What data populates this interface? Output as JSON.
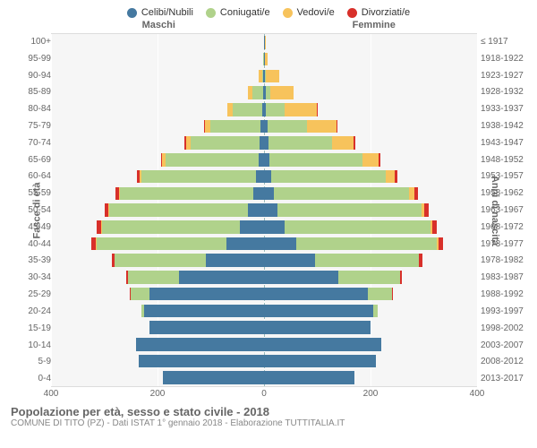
{
  "legend": [
    {
      "label": "Celibi/Nubili",
      "color": "#4579a0"
    },
    {
      "label": "Coniugati/e",
      "color": "#b0d28b"
    },
    {
      "label": "Vedovi/e",
      "color": "#f7c35c"
    },
    {
      "label": "Divorziati/e",
      "color": "#d8302a"
    }
  ],
  "genders": {
    "left": "Maschi",
    "right": "Femmine"
  },
  "ylabels": {
    "left": "Fasce di età",
    "right": "Anni di nascita"
  },
  "age_groups": [
    "100+",
    "95-99",
    "90-94",
    "85-89",
    "80-84",
    "75-79",
    "70-74",
    "65-69",
    "60-64",
    "55-59",
    "50-54",
    "45-49",
    "40-44",
    "35-39",
    "30-34",
    "25-29",
    "20-24",
    "15-19",
    "10-14",
    "5-9",
    "0-4"
  ],
  "birth_years": [
    "≤ 1917",
    "1918-1922",
    "1923-1927",
    "1928-1932",
    "1933-1937",
    "1938-1942",
    "1943-1947",
    "1948-1952",
    "1953-1957",
    "1958-1962",
    "1963-1967",
    "1968-1972",
    "1973-1977",
    "1978-1982",
    "1983-1987",
    "1988-1992",
    "1993-1997",
    "1998-2002",
    "2003-2007",
    "2008-2012",
    "2013-2017"
  ],
  "x_max": 400,
  "x_ticks": [
    400,
    200,
    0,
    200,
    400
  ],
  "title": "Popolazione per età, sesso e stato civile - 2018",
  "subtitle": "COMUNE DI TITO (PZ) - Dati ISTAT 1° gennaio 2018 - Elaborazione TUTTITALIA.IT",
  "colors": {
    "celibi": "#4579a0",
    "coniugati": "#b0d28b",
    "vedovi": "#f7c35c",
    "divorziati": "#d8302a",
    "plot_bg": "#f6f6f6",
    "grid": "#ffffff"
  },
  "data": {
    "male": [
      {
        "c": 0,
        "m": 0,
        "v": 0,
        "d": 0
      },
      {
        "c": 0,
        "m": 1,
        "v": 1,
        "d": 0
      },
      {
        "c": 1,
        "m": 3,
        "v": 6,
        "d": 0
      },
      {
        "c": 2,
        "m": 20,
        "v": 8,
        "d": 0
      },
      {
        "c": 4,
        "m": 55,
        "v": 10,
        "d": 0
      },
      {
        "c": 6,
        "m": 95,
        "v": 10,
        "d": 2
      },
      {
        "c": 8,
        "m": 130,
        "v": 8,
        "d": 3
      },
      {
        "c": 10,
        "m": 175,
        "v": 6,
        "d": 3
      },
      {
        "c": 15,
        "m": 215,
        "v": 4,
        "d": 5
      },
      {
        "c": 20,
        "m": 250,
        "v": 3,
        "d": 6
      },
      {
        "c": 30,
        "m": 260,
        "v": 2,
        "d": 8
      },
      {
        "c": 45,
        "m": 260,
        "v": 1,
        "d": 8
      },
      {
        "c": 70,
        "m": 245,
        "v": 1,
        "d": 8
      },
      {
        "c": 110,
        "m": 170,
        "v": 0,
        "d": 6
      },
      {
        "c": 160,
        "m": 95,
        "v": 0,
        "d": 4
      },
      {
        "c": 215,
        "m": 35,
        "v": 0,
        "d": 2
      },
      {
        "c": 225,
        "m": 5,
        "v": 0,
        "d": 0
      },
      {
        "c": 215,
        "m": 0,
        "v": 0,
        "d": 0
      },
      {
        "c": 240,
        "m": 0,
        "v": 0,
        "d": 0
      },
      {
        "c": 235,
        "m": 0,
        "v": 0,
        "d": 0
      },
      {
        "c": 190,
        "m": 0,
        "v": 0,
        "d": 0
      }
    ],
    "female": [
      {
        "c": 1,
        "m": 0,
        "v": 1,
        "d": 0
      },
      {
        "c": 1,
        "m": 0,
        "v": 6,
        "d": 0
      },
      {
        "c": 2,
        "m": 2,
        "v": 25,
        "d": 0
      },
      {
        "c": 3,
        "m": 8,
        "v": 45,
        "d": 0
      },
      {
        "c": 4,
        "m": 35,
        "v": 60,
        "d": 1
      },
      {
        "c": 6,
        "m": 75,
        "v": 55,
        "d": 2
      },
      {
        "c": 8,
        "m": 120,
        "v": 40,
        "d": 3
      },
      {
        "c": 10,
        "m": 175,
        "v": 30,
        "d": 4
      },
      {
        "c": 13,
        "m": 215,
        "v": 18,
        "d": 5
      },
      {
        "c": 18,
        "m": 255,
        "v": 10,
        "d": 6
      },
      {
        "c": 25,
        "m": 270,
        "v": 6,
        "d": 8
      },
      {
        "c": 38,
        "m": 275,
        "v": 3,
        "d": 8
      },
      {
        "c": 60,
        "m": 265,
        "v": 2,
        "d": 10
      },
      {
        "c": 95,
        "m": 195,
        "v": 1,
        "d": 6
      },
      {
        "c": 140,
        "m": 115,
        "v": 0,
        "d": 4
      },
      {
        "c": 195,
        "m": 45,
        "v": 0,
        "d": 2
      },
      {
        "c": 205,
        "m": 8,
        "v": 0,
        "d": 0
      },
      {
        "c": 200,
        "m": 0,
        "v": 0,
        "d": 0
      },
      {
        "c": 220,
        "m": 0,
        "v": 0,
        "d": 0
      },
      {
        "c": 210,
        "m": 0,
        "v": 0,
        "d": 0
      },
      {
        "c": 170,
        "m": 0,
        "v": 0,
        "d": 0
      }
    ]
  }
}
